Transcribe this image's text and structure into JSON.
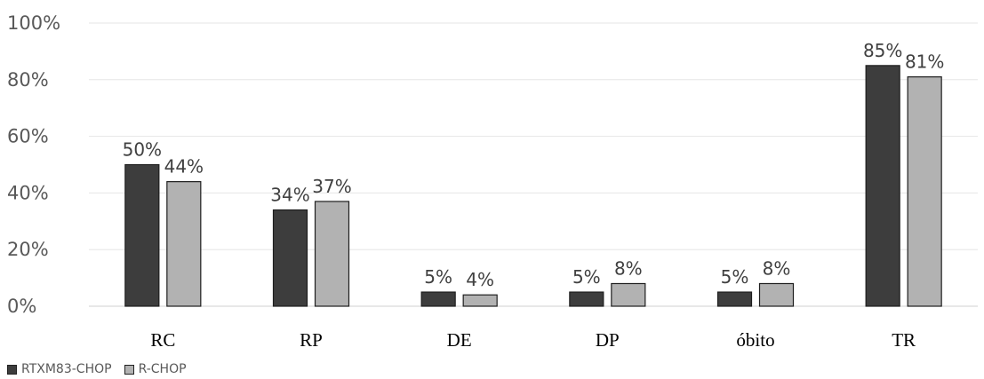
{
  "chart_data": {
    "type": "bar",
    "categories": [
      "RC",
      "RP",
      "DE",
      "DP",
      "óbito",
      "TR"
    ],
    "series": [
      {
        "name": "RTXM83-CHOP",
        "color": "#3d3d3d",
        "values": [
          50,
          34,
          5,
          5,
          5,
          85
        ],
        "labels": [
          "50%",
          "34%",
          "5%",
          "5%",
          "5%",
          "85%"
        ]
      },
      {
        "name": "R-CHOP",
        "color": "#b2b2b2",
        "values": [
          44,
          37,
          4,
          8,
          8,
          81
        ],
        "labels": [
          "44%",
          "37%",
          "4%",
          "8%",
          "8%",
          "81%"
        ]
      }
    ],
    "ylim": [
      0,
      100
    ],
    "yticks": [
      "0%",
      "20%",
      "40%",
      "60%",
      "80%",
      "100%"
    ],
    "grid": true,
    "legend_position": "bottom-left",
    "title": "",
    "xlabel": "",
    "ylabel": ""
  }
}
